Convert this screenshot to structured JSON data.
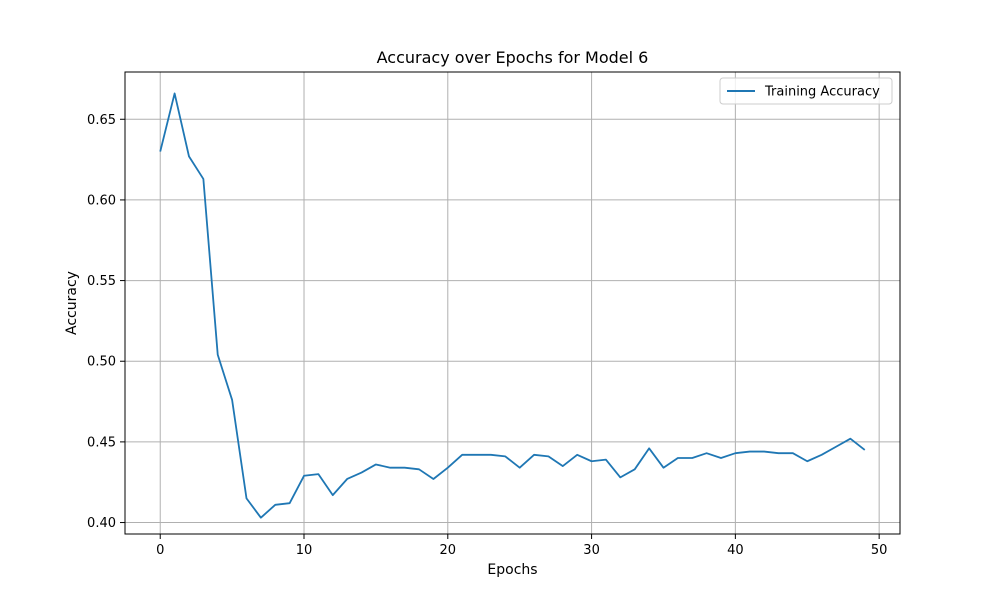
{
  "chart_data": {
    "type": "line",
    "title": "Accuracy over Epochs for Model 6",
    "xlabel": "Epochs",
    "ylabel": "Accuracy",
    "xlim": [
      -2.45,
      51.45
    ],
    "ylim": [
      0.3929,
      0.6793
    ],
    "xticks": [
      0,
      10,
      20,
      30,
      40,
      50
    ],
    "yticks": [
      0.4,
      0.45,
      0.5,
      0.55,
      0.6,
      0.65
    ],
    "grid": true,
    "legend_position": "top-right",
    "series": [
      {
        "name": "Training Accuracy",
        "color": "#1f77b4",
        "x": [
          0,
          1,
          2,
          3,
          4,
          5,
          6,
          7,
          8,
          9,
          10,
          11,
          12,
          13,
          14,
          15,
          16,
          17,
          18,
          19,
          20,
          21,
          22,
          23,
          24,
          25,
          26,
          27,
          28,
          29,
          30,
          31,
          32,
          33,
          34,
          35,
          36,
          37,
          38,
          39,
          40,
          41,
          42,
          43,
          44,
          45,
          46,
          47,
          48,
          49
        ],
        "y": [
          0.63,
          0.666,
          0.627,
          0.613,
          0.504,
          0.476,
          0.415,
          0.403,
          0.411,
          0.412,
          0.429,
          0.43,
          0.417,
          0.427,
          0.431,
          0.436,
          0.434,
          0.434,
          0.433,
          0.427,
          0.434,
          0.442,
          0.442,
          0.442,
          0.441,
          0.434,
          0.442,
          0.441,
          0.435,
          0.442,
          0.438,
          0.439,
          0.428,
          0.433,
          0.446,
          0.434,
          0.44,
          0.44,
          0.443,
          0.44,
          0.443,
          0.444,
          0.444,
          0.443,
          0.443,
          0.438,
          0.442,
          0.447,
          0.452,
          0.445
        ]
      }
    ]
  }
}
